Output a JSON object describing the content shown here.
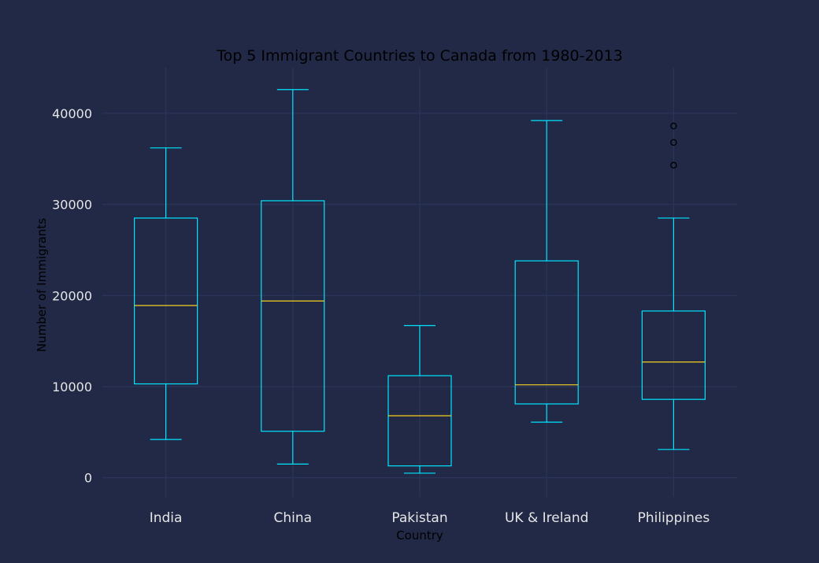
{
  "chart_data": {
    "type": "box",
    "title": "Top 5 Immigrant Countries to Canada from 1980-2013",
    "xlabel": "Country",
    "ylabel": "Number of Immigrants",
    "ylim": [
      -2100,
      45000
    ],
    "yticks": [
      0,
      10000,
      20000,
      30000,
      40000
    ],
    "grid": true,
    "colors": {
      "background": "#212946",
      "grid": "#2A3459",
      "box": "#00E5FF",
      "median": "#F5D020",
      "flier": "#000000",
      "title": "#000000",
      "tick_text": "#e6e6e6"
    },
    "series": [
      {
        "category": "India",
        "whisker_low": 4200,
        "q1": 10300,
        "median": 18900,
        "q3": 28500,
        "whisker_high": 36200,
        "outliers": []
      },
      {
        "category": "China",
        "whisker_low": 1500,
        "q1": 5100,
        "median": 19400,
        "q3": 30400,
        "whisker_high": 42600,
        "outliers": []
      },
      {
        "category": "Pakistan",
        "whisker_low": 500,
        "q1": 1300,
        "median": 6800,
        "q3": 11200,
        "whisker_high": 16700,
        "outliers": []
      },
      {
        "category": "UK & Ireland",
        "whisker_low": 6100,
        "q1": 8100,
        "median": 10200,
        "q3": 23800,
        "whisker_high": 39200,
        "outliers": []
      },
      {
        "category": "Philippines",
        "whisker_low": 3100,
        "q1": 8600,
        "median": 12700,
        "q3": 18300,
        "whisker_high": 28500,
        "outliers": [
          34300,
          36800,
          38600
        ]
      }
    ]
  }
}
